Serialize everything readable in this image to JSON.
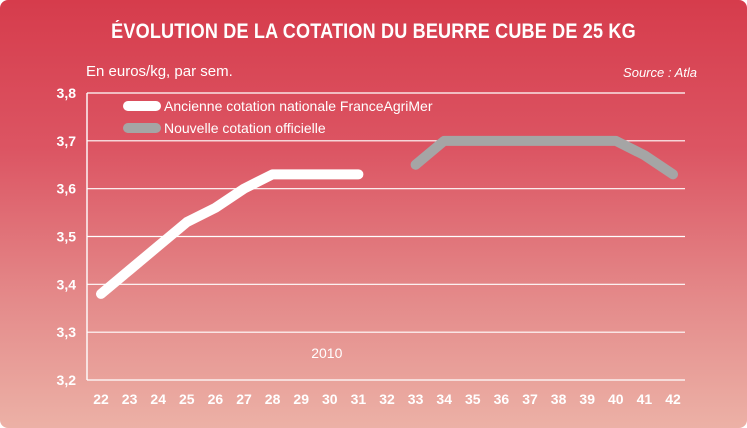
{
  "header": {
    "title": "ÉVOLUTION DE LA COTATION DU BEURRE CUBE DE 25 KG",
    "unit": "En euros/kg, par sem.",
    "source": "Source : Atla"
  },
  "colors": {
    "series_old": "#ffffff",
    "series_new": "#a5a5a5",
    "grid": "#ffffff"
  },
  "chart_data": {
    "type": "line",
    "title": "ÉVOLUTION DE LA COTATION DU BEURRE CUBE DE 25 KG",
    "ylabel": "En euros/kg, par sem.",
    "xlabel": "",
    "annotation": "2010",
    "x_categories": [
      "22",
      "23",
      "24",
      "25",
      "26",
      "27",
      "28",
      "29",
      "30",
      "31",
      "32",
      "33",
      "34",
      "35",
      "36",
      "37",
      "38",
      "39",
      "40",
      "41",
      "42"
    ],
    "yticks": [
      "3,2",
      "3,3",
      "3,4",
      "3,5",
      "3,6",
      "3,7",
      "3,8"
    ],
    "ylim": [
      3.2,
      3.8
    ],
    "grid": true,
    "legend_position": "top-left",
    "series": [
      {
        "name": "Ancienne cotation nationale FranceAgriMer",
        "color": "#ffffff",
        "points": [
          {
            "x": "22",
            "y": 3.38
          },
          {
            "x": "23",
            "y": 3.43
          },
          {
            "x": "24",
            "y": 3.48
          },
          {
            "x": "25",
            "y": 3.53
          },
          {
            "x": "26",
            "y": 3.56
          },
          {
            "x": "27",
            "y": 3.6
          },
          {
            "x": "28",
            "y": 3.63
          },
          {
            "x": "29",
            "y": 3.63
          },
          {
            "x": "30",
            "y": 3.63
          },
          {
            "x": "31",
            "y": 3.63
          }
        ]
      },
      {
        "name": "Nouvelle cotation officielle",
        "color": "#a5a5a5",
        "points": [
          {
            "x": "33",
            "y": 3.65
          },
          {
            "x": "34",
            "y": 3.7
          },
          {
            "x": "35",
            "y": 3.7
          },
          {
            "x": "36",
            "y": 3.7
          },
          {
            "x": "37",
            "y": 3.7
          },
          {
            "x": "38",
            "y": 3.7
          },
          {
            "x": "39",
            "y": 3.7
          },
          {
            "x": "40",
            "y": 3.7
          },
          {
            "x": "41",
            "y": 3.67
          },
          {
            "x": "42",
            "y": 3.63
          }
        ]
      }
    ]
  }
}
